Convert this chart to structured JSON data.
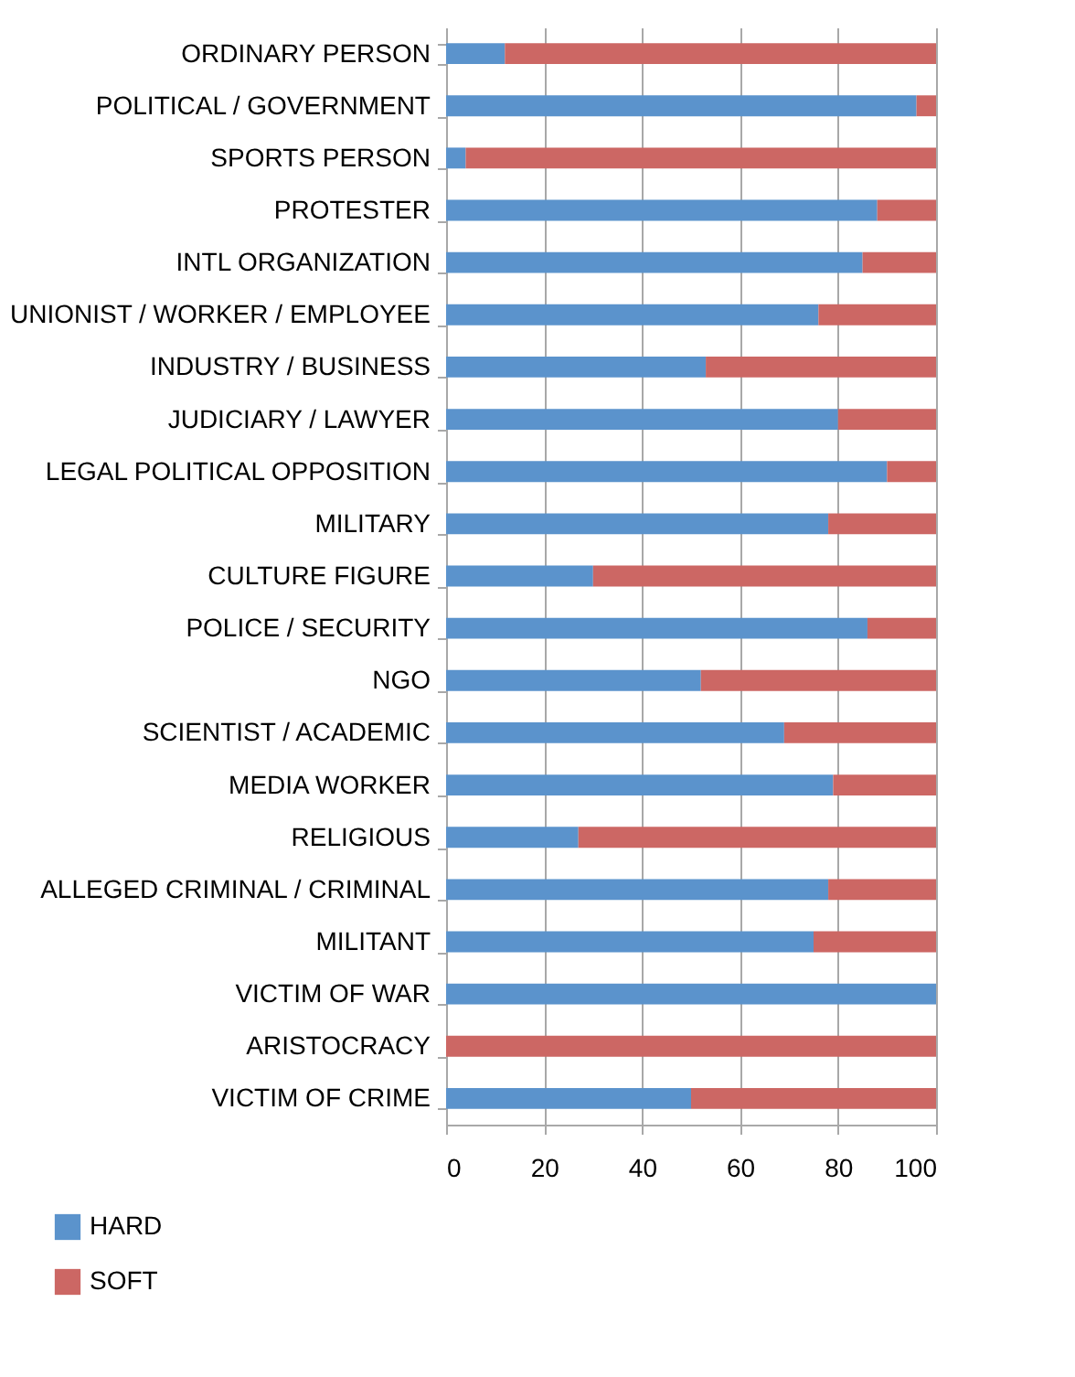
{
  "chart_data": {
    "type": "bar",
    "orientation": "horizontal",
    "stacked": true,
    "categories": [
      "ORDINARY PERSON",
      "POLITICAL / GOVERNMENT",
      "SPORTS PERSON",
      "PROTESTER",
      "INTL ORGANIZATION",
      "UNIONIST / WORKER / EMPLOYEE",
      "INDUSTRY / BUSINESS",
      "JUDICIARY / LAWYER",
      "LEGAL POLITICAL OPPOSITION",
      "MILITARY",
      "CULTURE FIGURE",
      "POLICE / SECURITY",
      "NGO",
      "SCIENTIST / ACADEMIC",
      "MEDIA WORKER",
      "RELIGIOUS",
      "ALLEGED CRIMINAL / CRIMINAL",
      "MILITANT",
      "VICTIM OF WAR",
      "ARISTOCRACY",
      "VICTIM OF CRIME"
    ],
    "series": [
      {
        "name": "HARD",
        "color": "#5b93cc",
        "values": [
          12,
          96,
          4,
          88,
          85,
          76,
          53,
          80,
          90,
          78,
          30,
          86,
          52,
          69,
          79,
          27,
          78,
          75,
          100,
          0,
          50
        ]
      },
      {
        "name": "SOFT",
        "color": "#cc6764",
        "values": [
          88,
          4,
          96,
          12,
          15,
          24,
          47,
          20,
          10,
          22,
          70,
          14,
          48,
          31,
          21,
          73,
          22,
          25,
          0,
          100,
          50
        ]
      }
    ],
    "xlim": [
      0,
      100
    ],
    "xticks": [
      0,
      20,
      40,
      60,
      80,
      100
    ],
    "grid": "x",
    "legend": "bottom left"
  }
}
